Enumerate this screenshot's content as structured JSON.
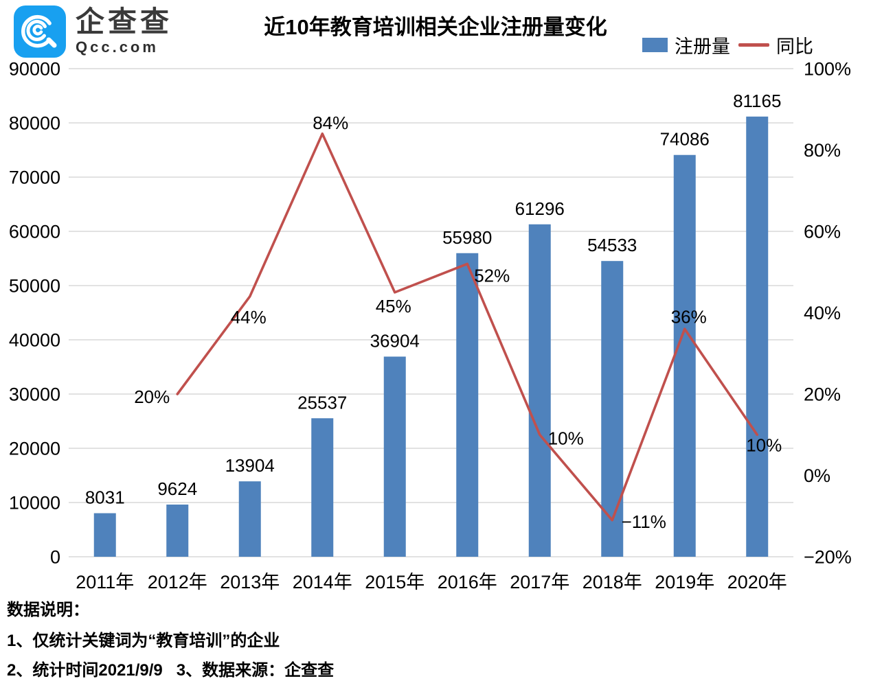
{
  "brand": {
    "name": "企查查",
    "domain": "Qcc.com",
    "icon_color": "#18a0f0"
  },
  "chart_data": {
    "type": "bar",
    "title": "近10年教育培训相关企业注册量变化",
    "categories": [
      "2011年",
      "2012年",
      "2013年",
      "2014年",
      "2015年",
      "2016年",
      "2017年",
      "2018年",
      "2019年",
      "2020年"
    ],
    "series": [
      {
        "name": "注册量",
        "type": "bar",
        "axis": "left",
        "color": "#4f82bc",
        "values": [
          8031,
          9624,
          13904,
          25537,
          36904,
          55980,
          61296,
          54533,
          74086,
          81165
        ],
        "labels": [
          "8031",
          "9624",
          "13904",
          "25537",
          "36904",
          "55980",
          "61296",
          "54533",
          "74086",
          "81165"
        ]
      },
      {
        "name": "同比",
        "type": "line",
        "axis": "right",
        "color": "#c0504d",
        "values": [
          null,
          20,
          44,
          84,
          45,
          52,
          10,
          -11,
          36,
          10
        ],
        "labels": [
          "",
          "20%",
          "44%",
          "84%",
          "45%",
          "52%",
          "10%",
          "−11%",
          "36%",
          "10%"
        ],
        "label_offsets": [
          [
            0,
            0
          ],
          [
            -37,
            4
          ],
          [
            -2,
            30
          ],
          [
            12,
            -16
          ],
          [
            -2,
            20
          ],
          [
            36,
            17
          ],
          [
            38,
            5
          ],
          [
            46,
            2
          ],
          [
            6,
            -18
          ],
          [
            10,
            15
          ]
        ]
      }
    ],
    "left_axis": {
      "min": 0,
      "max": 90000,
      "step": 10000,
      "ticks": [
        "90000",
        "80000",
        "70000",
        "60000",
        "50000",
        "40000",
        "30000",
        "20000",
        "10000",
        "0"
      ]
    },
    "right_axis": {
      "min": -20,
      "max": 100,
      "step": 20,
      "ticks": [
        "100%",
        "80%",
        "60%",
        "40%",
        "20%",
        "0%",
        "−20%"
      ]
    },
    "legend_position": "top-right",
    "grid": "horizontal",
    "grid_color": "#d9d9d9",
    "text_color": "#000000"
  },
  "footer": {
    "heading": "数据说明：",
    "note1": "1、仅统计关键词为“教育培训”的企业",
    "note2": "2、统计时间2021/9/9   3、数据来源：企查查"
  }
}
